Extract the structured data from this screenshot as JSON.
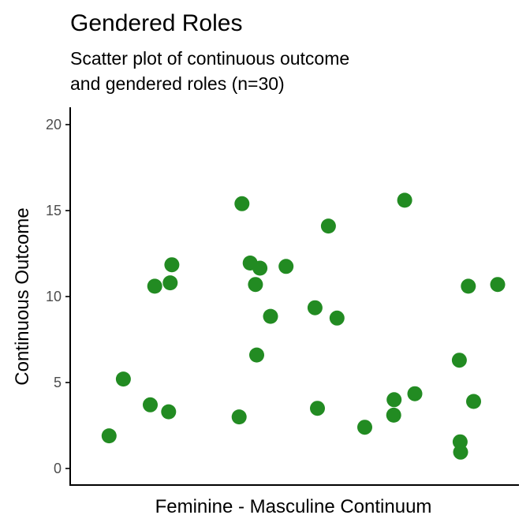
{
  "chart_data": {
    "type": "scatter",
    "title": "Gendered Roles",
    "subtitle": [
      "Scatter plot of continuous outcome",
      "and gendered roles (n=30)"
    ],
    "xlabel": "Feminine - Masculine Continuum",
    "ylabel": "Continuous Outcome",
    "ylim": [
      0,
      20
    ],
    "yticks": [
      0,
      5,
      10,
      15,
      20
    ],
    "xlim": [
      0,
      1
    ],
    "x_ticks_shown": false,
    "grid": false,
    "point_color": "#228B22",
    "points": [
      {
        "x": 0.047,
        "y": 1.9
      },
      {
        "x": 0.082,
        "y": 5.2
      },
      {
        "x": 0.148,
        "y": 3.7
      },
      {
        "x": 0.159,
        "y": 10.6
      },
      {
        "x": 0.193,
        "y": 3.3
      },
      {
        "x": 0.197,
        "y": 10.8
      },
      {
        "x": 0.201,
        "y": 11.85
      },
      {
        "x": 0.366,
        "y": 3.0
      },
      {
        "x": 0.373,
        "y": 15.4
      },
      {
        "x": 0.393,
        "y": 11.95
      },
      {
        "x": 0.406,
        "y": 10.7
      },
      {
        "x": 0.409,
        "y": 6.6
      },
      {
        "x": 0.417,
        "y": 11.65
      },
      {
        "x": 0.443,
        "y": 8.85
      },
      {
        "x": 0.481,
        "y": 11.75
      },
      {
        "x": 0.552,
        "y": 9.35
      },
      {
        "x": 0.558,
        "y": 3.5
      },
      {
        "x": 0.585,
        "y": 14.1
      },
      {
        "x": 0.606,
        "y": 8.75
      },
      {
        "x": 0.674,
        "y": 2.4
      },
      {
        "x": 0.745,
        "y": 3.1
      },
      {
        "x": 0.746,
        "y": 4.0
      },
      {
        "x": 0.772,
        "y": 15.6
      },
      {
        "x": 0.797,
        "y": 4.35
      },
      {
        "x": 0.906,
        "y": 6.3
      },
      {
        "x": 0.908,
        "y": 1.55
      },
      {
        "x": 0.909,
        "y": 0.95
      },
      {
        "x": 0.928,
        "y": 10.6
      },
      {
        "x": 0.941,
        "y": 3.9
      },
      {
        "x": 1.0,
        "y": 10.7
      }
    ]
  }
}
